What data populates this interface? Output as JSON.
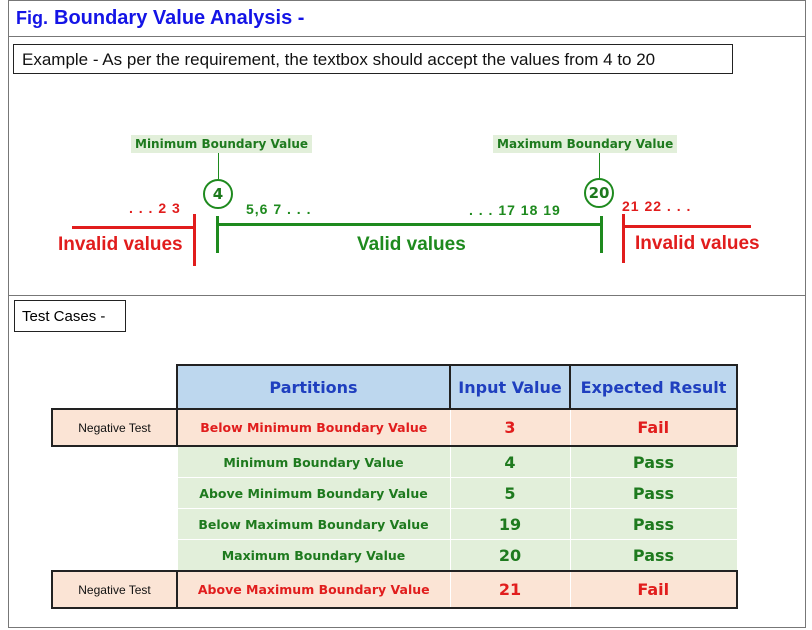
{
  "title": {
    "prefix": "Fig.",
    "text": "Boundary Value Analysis -"
  },
  "example": "Example - As per the requirement, the textbox should accept the values from 4 to 20",
  "diagram": {
    "min_label": "Minimum Boundary Value",
    "max_label": "Maximum Boundary Value",
    "min_value": "4",
    "max_value": "20",
    "left_invalid_seq": ". . . 2  3",
    "valid_start_seq": "5,6 7 . . .",
    "valid_end_seq": ". . . 17  18  19",
    "right_invalid_seq": "21  22 . . .",
    "left_invalid_label": "Invalid values",
    "valid_label": "Valid values",
    "right_invalid_label": "Invalid values",
    "colors": {
      "valid": "#1e8a1e",
      "invalid": "#e11d1d"
    }
  },
  "test_cases": {
    "heading": "Test Cases -",
    "columns": [
      "Partitions",
      "Input Value",
      "Expected Result"
    ],
    "rows": [
      {
        "tag": "Negative Test",
        "partition": "Below Minimum Boundary Value",
        "input": "3",
        "result": "Fail"
      },
      {
        "tag": "",
        "partition": "Minimum Boundary Value",
        "input": "4",
        "result": "Pass"
      },
      {
        "tag": "",
        "partition": "Above Minimum Boundary Value",
        "input": "5",
        "result": "Pass"
      },
      {
        "tag": "",
        "partition": "Below Maximum Boundary Value",
        "input": "19",
        "result": "Pass"
      },
      {
        "tag": "",
        "partition": "Maximum Boundary Value",
        "input": "20",
        "result": "Pass"
      },
      {
        "tag": "Negative Test",
        "partition": "Above Maximum Boundary Value",
        "input": "21",
        "result": "Fail"
      }
    ]
  }
}
